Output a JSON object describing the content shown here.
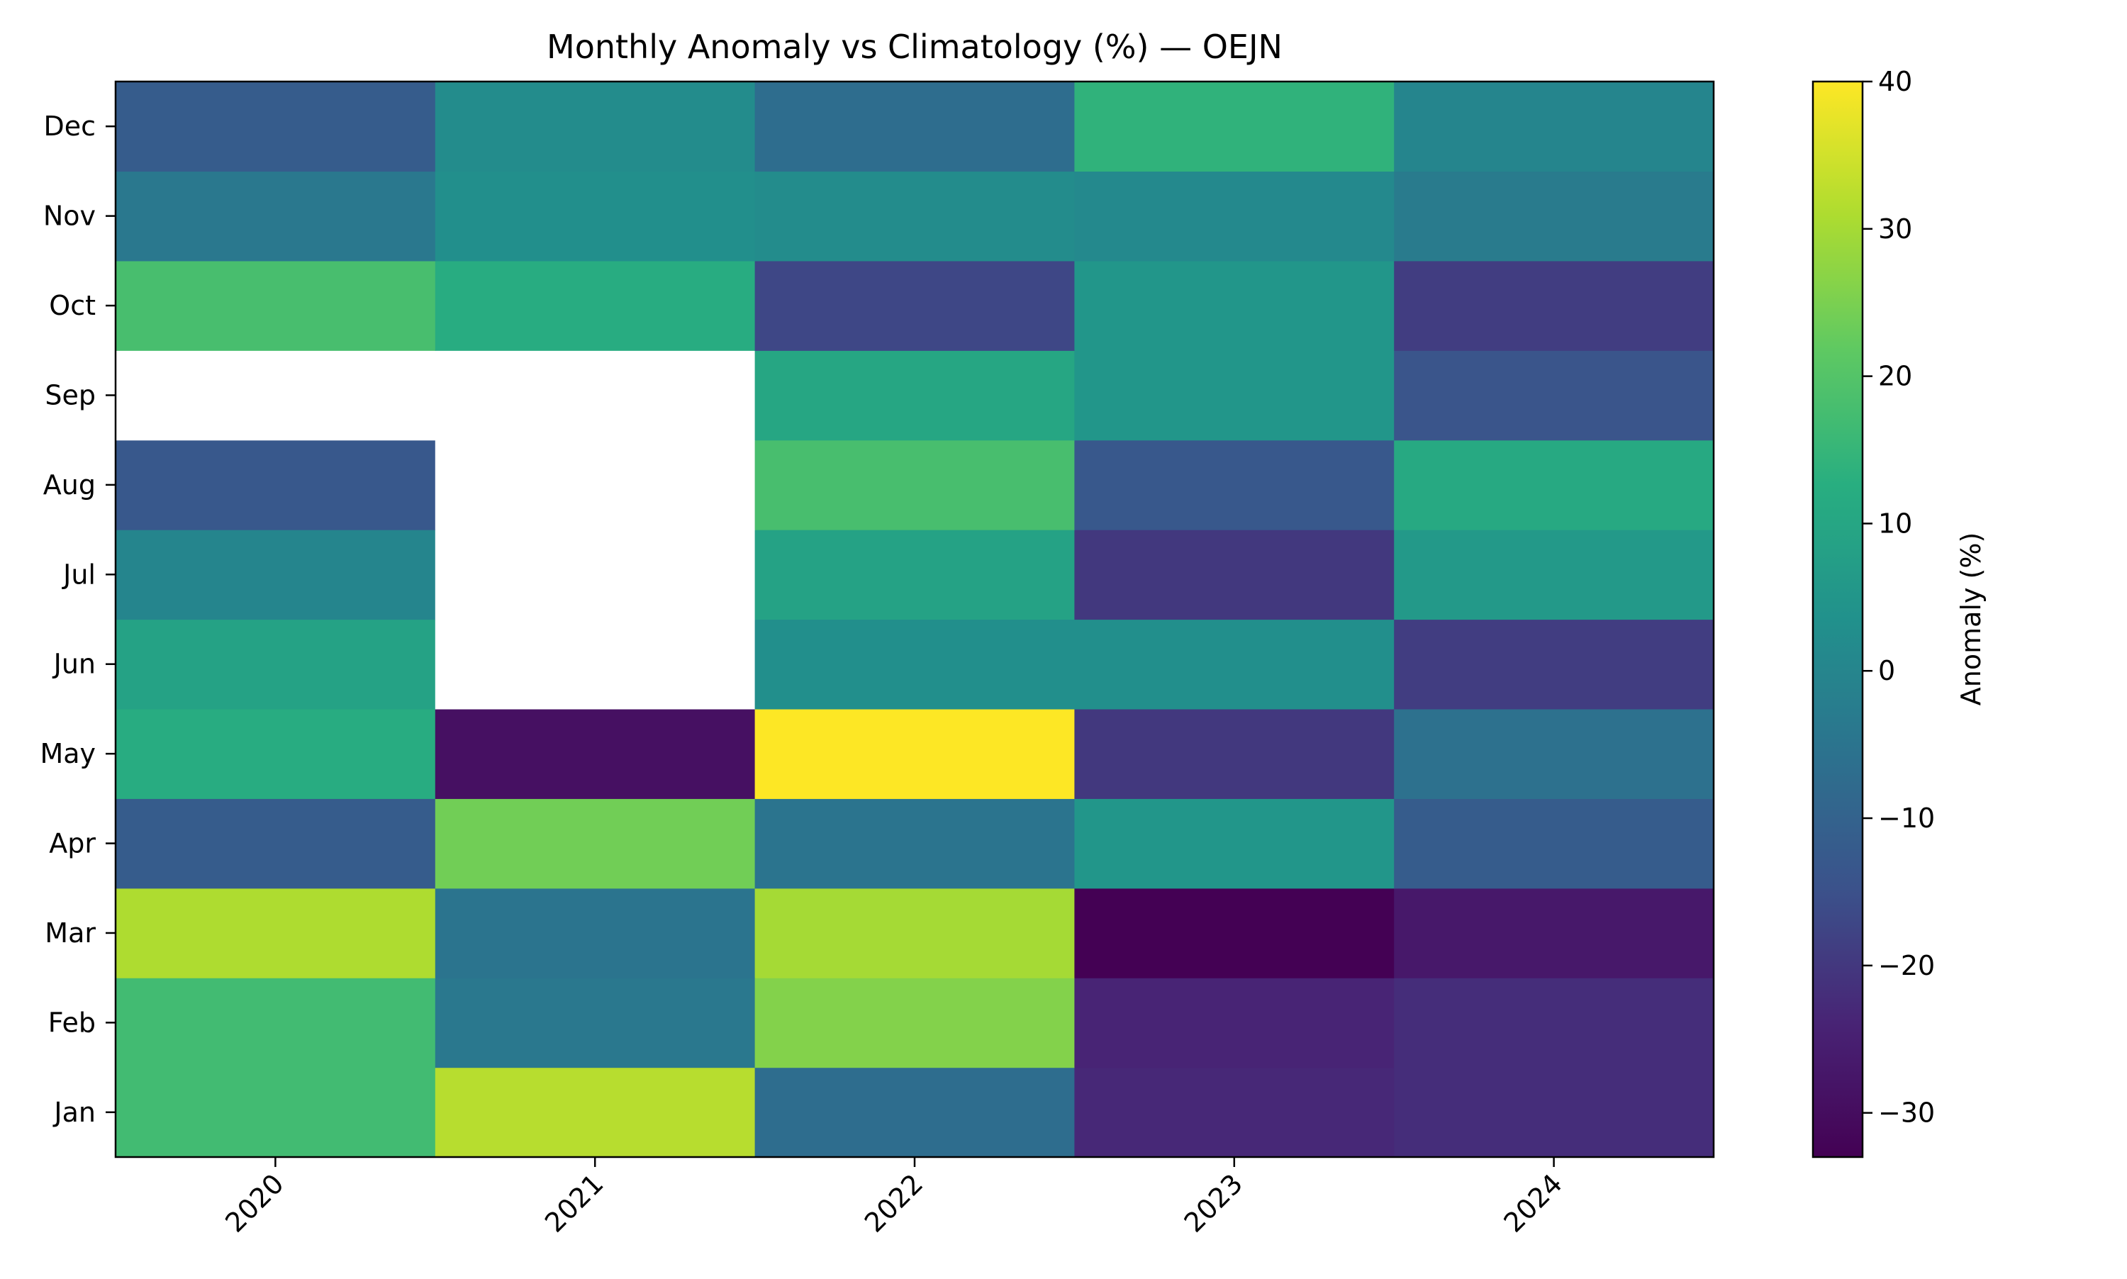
{
  "chart_data": {
    "type": "heatmap",
    "title": "Monthly Anomaly vs Climatology (%) — OEJN",
    "xlabel": "",
    "ylabel": "",
    "x_categories": [
      "2020",
      "2021",
      "2022",
      "2023",
      "2024"
    ],
    "y_categories": [
      "Jan",
      "Feb",
      "Mar",
      "Apr",
      "May",
      "Jun",
      "Jul",
      "Aug",
      "Sep",
      "Oct",
      "Nov",
      "Dec"
    ],
    "values": [
      [
        17,
        32,
        -7,
        -23,
        -22
      ],
      [
        17,
        -4,
        26,
        -24,
        -22
      ],
      [
        31,
        -5,
        30,
        -33,
        -27
      ],
      [
        -12,
        24,
        -5,
        5,
        -12
      ],
      [
        12,
        -29,
        40,
        -20,
        -6
      ],
      [
        9,
        null,
        3,
        3,
        -19
      ],
      [
        0,
        null,
        9,
        -20,
        6
      ],
      [
        -13,
        null,
        18,
        -13,
        11
      ],
      [
        null,
        null,
        10,
        5,
        -14
      ],
      [
        18,
        12,
        -17,
        5,
        -19
      ],
      [
        -4,
        3,
        2,
        1,
        -3
      ],
      [
        -12,
        2,
        -7,
        14,
        0
      ]
    ],
    "colorbar": {
      "label": "Anomaly (%)",
      "range": [
        -33,
        40
      ],
      "ticks": [
        "−30",
        "−20",
        "−10",
        "0",
        "10",
        "20",
        "30",
        "40"
      ],
      "colormap": "viridis"
    },
    "missing_color": "#ffffff"
  }
}
